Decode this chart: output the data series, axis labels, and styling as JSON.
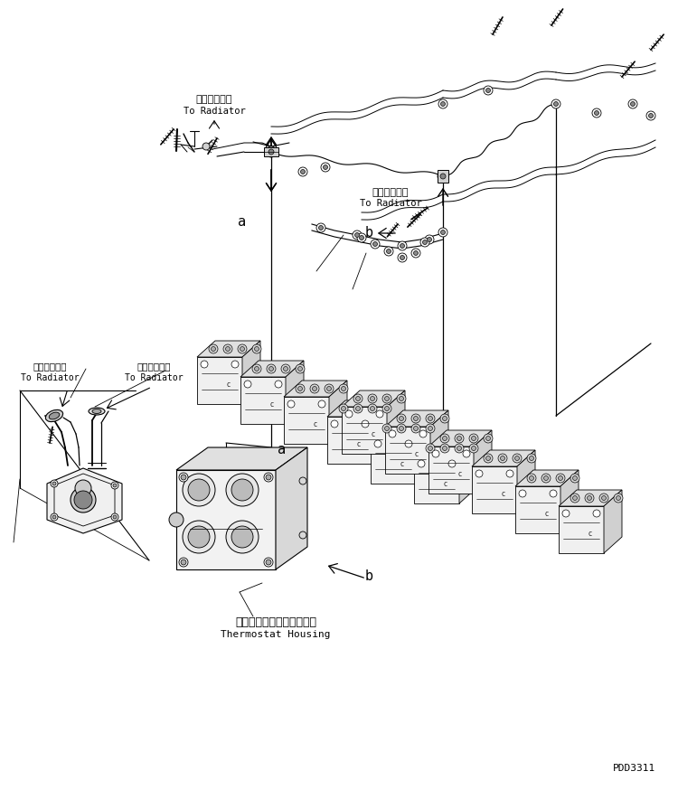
{
  "bg_color": "#ffffff",
  "line_color": "#000000",
  "fig_width": 7.5,
  "fig_height": 8.74,
  "dpi": 100,
  "watermark": "PDD3311",
  "labels": {
    "to_radiator_jp": "ラジェータへ",
    "to_radiator_en": "To Radiator",
    "thermostat_jp": "サーモスタットハウジング",
    "thermostat_en": "Thermostat Housing"
  }
}
